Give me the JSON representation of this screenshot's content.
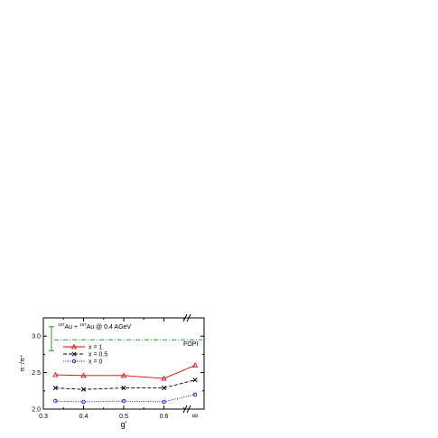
{
  "chart_data": {
    "type": "line",
    "annotation": "197Au + 197Au @ 0.4 AGeV",
    "annotation_mass_1": "197",
    "annotation_elem_1": "Au + ",
    "annotation_mass_2": "197",
    "annotation_elem_2": "Au @ 0.4 AGeV",
    "xlabel": "g'",
    "ylabel": "π⁻/π⁺",
    "xlim": [
      0.3,
      0.7
    ],
    "ylim": [
      2.0,
      3.25
    ],
    "x_ticks": [
      "0.3",
      "0.4",
      "0.5",
      "0.6"
    ],
    "x_break_tick": "∞",
    "y_ticks": [
      "2.0",
      "2.5",
      "3.0"
    ],
    "series": [
      {
        "name": "x = 1",
        "marker": "triangle",
        "linestyle": "solid",
        "color": "#dd0000",
        "x": [
          0.33,
          0.4,
          0.5,
          0.6,
          "∞"
        ],
        "y": [
          2.47,
          2.46,
          2.46,
          2.42,
          2.6
        ]
      },
      {
        "name": "x = 0.5",
        "marker": "x",
        "linestyle": "dashed",
        "color": "#000000",
        "x": [
          0.33,
          0.4,
          0.5,
          0.6,
          "∞"
        ],
        "y": [
          2.29,
          2.27,
          2.29,
          2.29,
          2.4
        ]
      },
      {
        "name": "x = 0",
        "marker": "circle",
        "linestyle": "dotted",
        "color": "#0000cc",
        "x": [
          0.33,
          0.4,
          0.5,
          0.6,
          "∞"
        ],
        "y": [
          2.11,
          2.1,
          2.11,
          2.1,
          2.2
        ]
      }
    ],
    "reference": {
      "label": "FOPI",
      "y": 2.95,
      "color": "#2a9a2a",
      "linestyle": "dash-dot"
    },
    "error_bar": {
      "y": 2.97,
      "low": 2.8,
      "high": 3.13,
      "color": "#2a9a2a"
    },
    "legend_placement": "center-left",
    "grid": false
  }
}
